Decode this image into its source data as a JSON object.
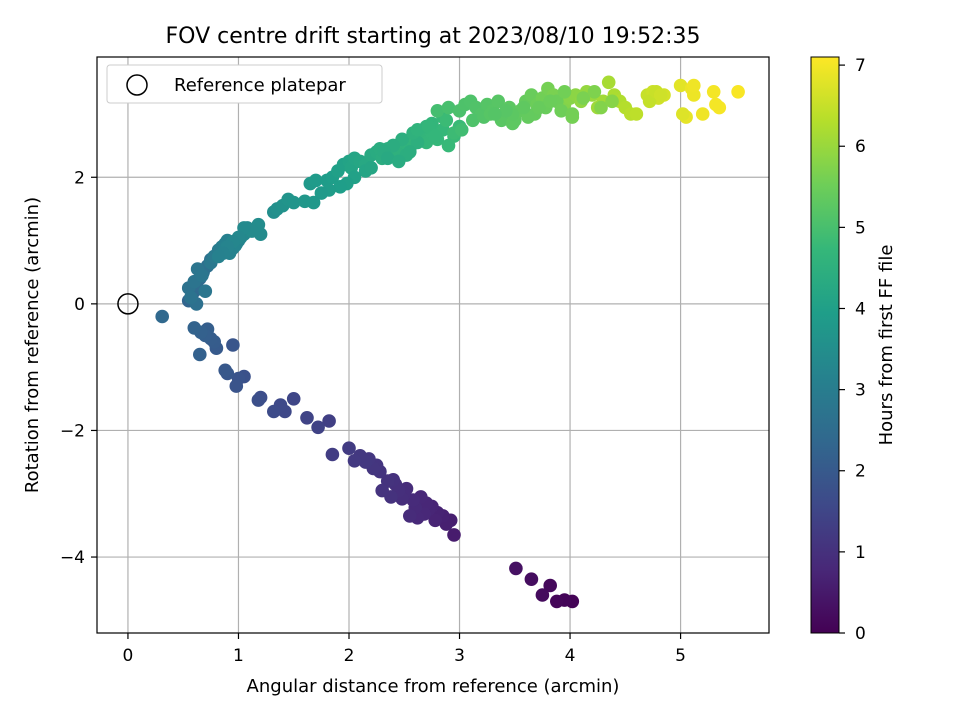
{
  "chart_data": {
    "type": "scatter",
    "title": "FOV centre drift starting at 2023/08/10 19:52:35",
    "xlabel": "Angular distance from reference (arcmin)",
    "ylabel": "Rotation from reference (arcmin)",
    "xlim": [
      -0.28,
      5.8
    ],
    "ylim": [
      -5.2,
      3.9
    ],
    "xticks": [
      0,
      1,
      2,
      3,
      4,
      5
    ],
    "yticks": [
      -4,
      -2,
      0,
      2
    ],
    "grid": true,
    "legend": {
      "position": "upper-left",
      "entries": [
        "Reference platepar"
      ]
    },
    "reference_point": {
      "x": 0,
      "y": 0
    },
    "colorbar": {
      "label": "Hours from first FF file",
      "range": [
        0,
        7.1
      ],
      "ticks": [
        0,
        1,
        2,
        3,
        4,
        5,
        6,
        7
      ],
      "colormap": "viridis"
    },
    "colormap_stops": [
      "#440154",
      "#482878",
      "#3e4989",
      "#31688e",
      "#26828e",
      "#1f9e89",
      "#35b779",
      "#6ece58",
      "#b5de2b",
      "#fde725"
    ],
    "series": [
      {
        "x": [
          4.02,
          3.95,
          3.88,
          3.82,
          3.75,
          3.65,
          3.51
        ],
        "y": [
          -4.7,
          -4.68,
          -4.7,
          -4.45,
          -4.6,
          -4.35,
          -4.18
        ],
        "hours": [
          0.05,
          0.08,
          0.12,
          0.16,
          0.2,
          0.25,
          0.32
        ]
      },
      {
        "x": [
          2.95,
          2.92,
          2.88,
          2.85,
          2.8,
          2.78,
          2.75,
          2.72,
          2.7,
          2.68,
          2.65,
          2.62,
          2.6,
          2.58,
          2.55,
          2.52,
          2.5,
          2.48,
          2.45,
          2.42,
          2.4,
          2.38,
          2.35,
          2.3,
          2.28,
          2.25,
          2.22,
          2.18,
          2.15,
          2.1,
          2.05,
          2.0,
          1.85,
          1.82,
          1.72,
          1.62,
          1.5,
          1.42,
          1.38,
          1.32,
          1.2,
          1.18,
          1.05,
          1.0,
          0.98,
          0.95,
          0.9,
          0.88,
          0.8,
          0.78,
          0.75,
          0.72,
          0.7,
          0.65,
          0.66,
          0.6,
          0.31
        ],
        "y": [
          -3.65,
          -3.42,
          -3.48,
          -3.35,
          -3.3,
          -3.42,
          -3.2,
          -3.25,
          -3.15,
          -3.32,
          -3.05,
          -3.38,
          -3.22,
          -3.1,
          -3.35,
          -2.92,
          -3.0,
          -3.08,
          -2.95,
          -2.85,
          -2.78,
          -3.05,
          -2.8,
          -2.95,
          -2.65,
          -2.55,
          -2.6,
          -2.45,
          -2.5,
          -2.4,
          -2.48,
          -2.28,
          -2.38,
          -1.85,
          -1.95,
          -1.8,
          -1.5,
          -1.7,
          -1.6,
          -1.7,
          -1.48,
          -1.52,
          -1.15,
          -1.18,
          -1.3,
          -0.65,
          -1.1,
          -1.05,
          -0.7,
          -0.6,
          -0.55,
          -0.4,
          -0.5,
          -0.8,
          -0.45,
          -0.38,
          -0.2
        ],
        "hours": [
          0.55,
          0.6,
          0.62,
          0.65,
          0.68,
          0.7,
          0.72,
          0.74,
          0.76,
          0.78,
          0.8,
          0.82,
          0.84,
          0.86,
          0.88,
          0.9,
          0.92,
          0.94,
          0.96,
          0.98,
          1.0,
          1.02,
          1.04,
          1.06,
          1.08,
          1.1,
          1.12,
          1.14,
          1.16,
          1.18,
          1.2,
          1.25,
          1.28,
          1.35,
          1.4,
          1.45,
          1.5,
          1.55,
          1.58,
          1.62,
          1.68,
          1.72,
          1.78,
          1.82,
          1.85,
          1.88,
          1.92,
          1.95,
          2.0,
          2.05,
          2.08,
          2.1,
          2.14,
          2.18,
          2.2,
          2.24,
          2.4
        ]
      },
      {
        "x": [
          0.55,
          0.58,
          0.6,
          0.62,
          0.65,
          0.68,
          0.72,
          0.75,
          0.62,
          0.55,
          0.57,
          0.6,
          0.63,
          0.67,
          0.7,
          0.75,
          0.78,
          0.82,
          0.85,
          0.88,
          0.9,
          0.92,
          0.95,
          0.97,
          1.0,
          1.02,
          1.05,
          1.08,
          0.88,
          0.92,
          0.98,
          1.2,
          1.18,
          1.12,
          1.05,
          1.0,
          0.95,
          0.9,
          0.86,
          0.82,
          1.32,
          1.35,
          1.4,
          1.45,
          1.5,
          1.6,
          1.65,
          1.7,
          1.8,
          1.85,
          1.9,
          1.95,
          2.0,
          2.02,
          2.05,
          2.1,
          2.15,
          2.2,
          2.25,
          2.3,
          2.35,
          2.4,
          2.45,
          2.5,
          2.55,
          2.6,
          2.65,
          2.7,
          2.75,
          2.8,
          2.85,
          2.9,
          2.95,
          3.0,
          2.28,
          2.52,
          2.62,
          2.48,
          2.4,
          2.32,
          2.58,
          2.7,
          2.75,
          2.85,
          2.35,
          2.45,
          2.55,
          2.15,
          2.2,
          2.05,
          1.98,
          1.92,
          1.82,
          1.75,
          1.68,
          2.62,
          2.72,
          2.78,
          2.88,
          2.95,
          3.02
        ],
        "y": [
          0.05,
          0.15,
          0.2,
          0.3,
          0.4,
          0.5,
          0.6,
          0.7,
          0.0,
          0.25,
          0.1,
          0.35,
          0.55,
          0.45,
          0.2,
          0.65,
          0.75,
          0.85,
          0.9,
          0.95,
          1.0,
          0.8,
          0.88,
          0.92,
          1.0,
          1.05,
          1.1,
          1.2,
          0.9,
          0.85,
          0.95,
          1.1,
          1.25,
          1.15,
          1.2,
          1.05,
          0.98,
          0.9,
          0.8,
          0.75,
          1.45,
          1.5,
          1.55,
          1.65,
          1.6,
          1.62,
          1.9,
          1.95,
          1.95,
          2.0,
          2.1,
          2.2,
          2.25,
          2.15,
          2.3,
          2.25,
          2.2,
          2.35,
          2.4,
          2.3,
          2.45,
          2.5,
          2.4,
          2.55,
          2.45,
          2.6,
          2.65,
          2.55,
          2.7,
          2.6,
          2.75,
          2.5,
          2.65,
          2.8,
          2.45,
          2.35,
          2.55,
          2.6,
          2.5,
          2.4,
          2.7,
          2.8,
          2.85,
          2.95,
          2.3,
          2.25,
          2.4,
          2.1,
          2.15,
          2.0,
          1.9,
          1.85,
          1.8,
          1.75,
          1.6,
          2.75,
          2.8,
          2.65,
          2.9,
          2.7,
          2.75
        ],
        "hours": [
          2.3,
          2.35,
          2.4,
          2.45,
          2.5,
          2.55,
          2.6,
          2.65,
          2.62,
          2.68,
          2.7,
          2.72,
          2.75,
          2.78,
          2.8,
          2.85,
          2.9,
          2.95,
          3.0,
          3.05,
          3.1,
          3.15,
          3.18,
          3.2,
          3.25,
          3.28,
          3.3,
          3.35,
          3.12,
          3.16,
          3.22,
          3.4,
          3.45,
          3.42,
          3.38,
          3.32,
          3.26,
          3.2,
          3.16,
          3.12,
          3.5,
          3.55,
          3.6,
          3.65,
          3.7,
          3.75,
          3.8,
          3.85,
          3.9,
          3.95,
          4.0,
          4.05,
          4.1,
          4.12,
          4.15,
          4.2,
          4.25,
          4.3,
          4.35,
          4.4,
          4.45,
          4.5,
          4.52,
          4.55,
          4.6,
          4.62,
          4.65,
          4.68,
          4.7,
          4.72,
          4.74,
          4.76,
          4.78,
          4.8,
          4.38,
          4.42,
          4.48,
          4.46,
          4.4,
          4.36,
          4.55,
          4.62,
          4.66,
          4.75,
          4.3,
          4.35,
          4.42,
          4.15,
          4.18,
          4.05,
          3.98,
          3.95,
          3.88,
          3.82,
          3.78,
          4.6,
          4.66,
          4.7,
          4.82,
          4.85,
          4.9
        ]
      },
      {
        "x": [
          2.8,
          2.9,
          3.0,
          3.05,
          3.1,
          3.15,
          3.2,
          3.25,
          3.3,
          3.35,
          3.4,
          3.45,
          3.5,
          3.55,
          3.6,
          3.65,
          3.7,
          3.75,
          3.8,
          3.85,
          3.9,
          3.95,
          4.0,
          4.05,
          4.1,
          4.15,
          4.2,
          4.25,
          4.3,
          4.35,
          4.4,
          4.45,
          4.5,
          4.55,
          4.6,
          4.7,
          4.75,
          4.8,
          4.85,
          5.0,
          5.05,
          5.1,
          5.12,
          5.2,
          5.3,
          5.35,
          5.52,
          3.12,
          3.22,
          3.28,
          3.38,
          3.48,
          3.58,
          3.68,
          3.78,
          3.88,
          3.95,
          4.02,
          4.12,
          4.22,
          4.28,
          4.38,
          3.62,
          3.72,
          3.82,
          3.92,
          4.02,
          3.48,
          3.58,
          3.42,
          3.32,
          4.72,
          4.78,
          4.82,
          5.12,
          5.32,
          5.02
        ],
        "y": [
          3.05,
          3.1,
          3.05,
          3.15,
          3.2,
          3.1,
          3.0,
          3.15,
          3.05,
          3.2,
          2.95,
          3.1,
          2.9,
          3.05,
          3.2,
          3.3,
          3.15,
          3.25,
          3.4,
          3.3,
          3.2,
          3.15,
          3.25,
          3.3,
          3.2,
          3.35,
          3.3,
          3.1,
          3.2,
          3.5,
          3.3,
          3.2,
          3.1,
          3.0,
          3.0,
          3.3,
          3.35,
          3.25,
          3.3,
          3.45,
          2.95,
          3.4,
          3.3,
          3.0,
          3.35,
          3.1,
          3.35,
          2.9,
          2.95,
          3.0,
          2.9,
          2.85,
          3.05,
          3.0,
          3.1,
          3.2,
          3.35,
          2.95,
          3.25,
          3.35,
          3.1,
          3.2,
          2.95,
          3.1,
          3.2,
          3.05,
          3.0,
          3.0,
          3.1,
          3.05,
          3.0,
          3.2,
          3.35,
          3.3,
          3.45,
          3.15,
          3.0
        ],
        "hours": [
          4.95,
          5.0,
          5.05,
          5.08,
          5.1,
          5.12,
          5.15,
          5.18,
          5.2,
          5.22,
          5.25,
          5.28,
          5.3,
          5.35,
          5.4,
          5.45,
          5.5,
          5.55,
          5.6,
          5.65,
          5.7,
          5.75,
          5.8,
          5.85,
          5.9,
          5.95,
          6.0,
          6.05,
          6.1,
          6.15,
          6.2,
          6.25,
          6.3,
          6.35,
          6.4,
          6.5,
          6.55,
          6.6,
          6.65,
          6.8,
          6.85,
          6.9,
          6.92,
          6.95,
          7.0,
          7.02,
          7.05,
          5.1,
          5.15,
          5.2,
          5.25,
          5.3,
          5.35,
          5.4,
          5.45,
          5.5,
          5.55,
          5.6,
          5.65,
          5.7,
          5.75,
          5.8,
          5.38,
          5.42,
          5.48,
          5.52,
          5.58,
          5.28,
          5.32,
          5.22,
          5.18,
          6.48,
          6.52,
          6.58,
          6.95,
          7.0,
          6.75
        ]
      }
    ]
  }
}
